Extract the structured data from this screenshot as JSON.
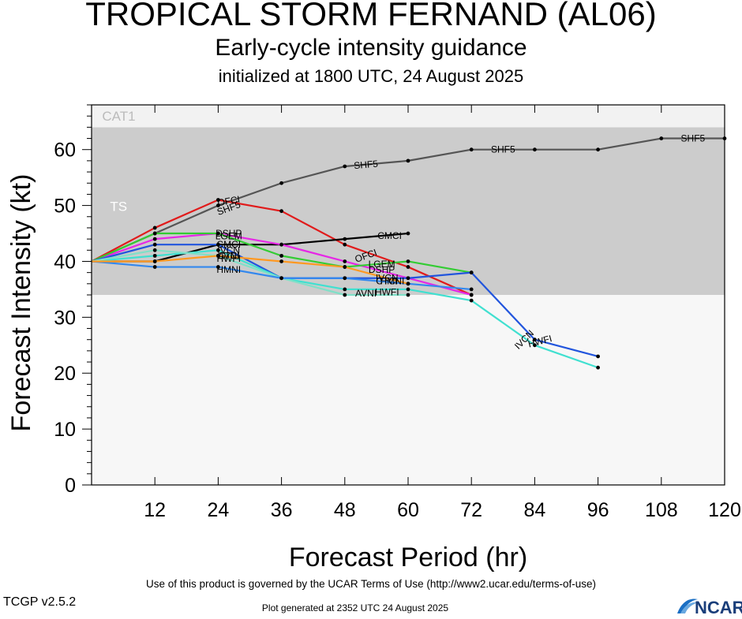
{
  "header": {
    "title": "TROPICAL STORM FERNAND (AL06)",
    "subtitle": "Early-cycle intensity guidance",
    "init": "initialized at 1800 UTC, 24 August 2025"
  },
  "footer": {
    "terms": "Use of this product is governed by the UCAR Terms of Use (http://www2.ucar.edu/terms-of-use)",
    "version": "TCGP v2.5.2",
    "generated": "Plot generated at 2352 UTC   24 August 2025",
    "logo_text": "NCAR"
  },
  "chart_data": {
    "type": "line",
    "xlabel": "Forecast Period (hr)",
    "ylabel": "Forecast Intensity (kt)",
    "xlim": [
      0,
      120
    ],
    "ylim": [
      0,
      68
    ],
    "xticks": [
      12,
      24,
      36,
      48,
      60,
      72,
      84,
      96,
      108,
      120
    ],
    "yticks": [
      0,
      10,
      20,
      30,
      40,
      50,
      60
    ],
    "bands": [
      {
        "label": "TS",
        "from": 34,
        "to": 64,
        "color": "#cccccc"
      },
      {
        "label": "CAT1",
        "from": 64,
        "to": 68,
        "color": "#f2f2f2"
      }
    ],
    "series": [
      {
        "name": "SHF5",
        "color": "#555555",
        "x": [
          0,
          12,
          24,
          36,
          48,
          60,
          72,
          84,
          96,
          108,
          120
        ],
        "y": [
          40,
          45,
          50,
          54,
          57,
          58,
          60,
          60,
          60,
          62,
          62
        ],
        "labels": [
          {
            "x": 26,
            "y": 49.5,
            "rot": -20
          },
          {
            "x": 52,
            "y": 57.3,
            "rot": -5
          },
          {
            "x": 78,
            "y": 60,
            "rot": 0
          },
          {
            "x": 114,
            "y": 62,
            "rot": 0
          }
        ]
      },
      {
        "name": "OFCI",
        "color": "#e11b1b",
        "x": [
          0,
          12,
          24,
          36,
          48,
          60,
          72
        ],
        "y": [
          40,
          46,
          51,
          49,
          43,
          39,
          34
        ],
        "labels": [
          {
            "x": 26,
            "y": 50.8,
            "rot": -10
          },
          {
            "x": 52,
            "y": 41,
            "rot": -20
          }
        ]
      },
      {
        "name": "CMCI",
        "color": "#000000",
        "x": [
          0,
          12,
          24,
          36,
          48,
          60
        ],
        "y": [
          40,
          40,
          43,
          43,
          44,
          45
        ],
        "labels": [
          {
            "x": 56.5,
            "y": 44.6,
            "rot": 0
          },
          {
            "x": 26,
            "y": 43,
            "rot": 0
          }
        ]
      },
      {
        "name": "DSHP",
        "color": "#e627e6",
        "x": [
          0,
          12,
          24,
          36,
          48,
          60,
          72
        ],
        "y": [
          40,
          44,
          45,
          43,
          40,
          37,
          34
        ],
        "labels": [
          {
            "x": 26,
            "y": 45,
            "rot": 0
          },
          {
            "x": 55,
            "y": 38.5,
            "rot": 0
          }
        ]
      },
      {
        "name": "LGEM",
        "color": "#33cc33",
        "x": [
          0,
          12,
          24,
          36,
          48,
          60,
          72
        ],
        "y": [
          40,
          45,
          45,
          41,
          39,
          40,
          38
        ],
        "labels": [
          {
            "x": 26,
            "y": 44.5,
            "rot": 0
          },
          {
            "x": 55,
            "y": 39.5,
            "rot": 0
          }
        ]
      },
      {
        "name": "IVCN",
        "color": "#2255dd",
        "x": [
          0,
          12,
          24,
          36,
          48,
          60,
          72,
          84,
          96
        ],
        "y": [
          40,
          43,
          43,
          37,
          37,
          37,
          38,
          26,
          23
        ],
        "labels": [
          {
            "x": 26,
            "y": 42,
            "rot": 0
          },
          {
            "x": 56,
            "y": 37,
            "rot": 0
          },
          {
            "x": 82,
            "y": 26,
            "rot": -45
          }
        ]
      },
      {
        "name": "HWFI",
        "color": "#40e0d0",
        "x": [
          0,
          12,
          24,
          36,
          48,
          60,
          72,
          84,
          96
        ],
        "y": [
          40,
          41,
          42,
          37,
          35,
          35,
          33,
          25,
          21
        ],
        "labels": [
          {
            "x": 26,
            "y": 40.5,
            "rot": 0
          },
          {
            "x": 56,
            "y": 34.5,
            "rot": 0
          },
          {
            "x": 85,
            "y": 25.7,
            "rot": -15
          }
        ]
      },
      {
        "name": "AVNI",
        "color": "#80e0c8",
        "x": [
          0,
          12,
          24,
          36,
          48,
          60
        ],
        "y": [
          40,
          42,
          41,
          37,
          34,
          34
        ],
        "labels": [
          {
            "x": 26,
            "y": 41,
            "rot": 0
          },
          {
            "x": 52,
            "y": 34.3,
            "rot": 0
          }
        ]
      },
      {
        "name": "HMNI",
        "color": "#3388ee",
        "x": [
          0,
          12,
          24,
          36,
          48,
          60,
          72
        ],
        "y": [
          40,
          39,
          39,
          37,
          37,
          36,
          35
        ],
        "labels": [
          {
            "x": 26,
            "y": 38.5,
            "rot": 0
          },
          {
            "x": 57,
            "y": 36.5,
            "rot": 0
          }
        ]
      },
      {
        "name": "CTCI",
        "color": "#ff9922",
        "x": [
          0,
          12,
          24,
          36,
          48,
          60
        ],
        "y": [
          40,
          40,
          41,
          40,
          39,
          36
        ],
        "labels": [
          {
            "x": 26,
            "y": 41,
            "rot": 0
          },
          {
            "x": 56,
            "y": 36.5,
            "rot": 0
          }
        ]
      }
    ]
  }
}
